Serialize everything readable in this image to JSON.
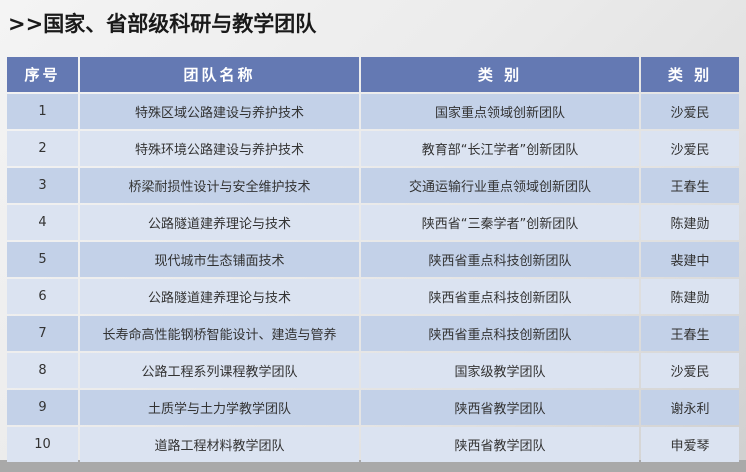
{
  "title": ">>国家、省部级科研与教学团队",
  "headers": [
    "序号",
    "团队名称",
    "类 别",
    "类 别"
  ],
  "rows": [
    [
      "1",
      "特殊区域公路建设与养护技术",
      "国家重点领域创新团队",
      "沙爱民"
    ],
    [
      "2",
      "特殊环境公路建设与养护技术",
      "教育部“长江学者”创新团队",
      "沙爱民"
    ],
    [
      "3",
      "桥梁耐损性设计与安全维护技术",
      "交通运输行业重点领域创新团队",
      "王春生"
    ],
    [
      "4",
      "公路隧道建养理论与技术",
      "陕西省“三秦学者”创新团队",
      "陈建勋"
    ],
    [
      "5",
      "现代城市生态铺面技术",
      "陕西省重点科技创新团队",
      "裴建中"
    ],
    [
      "6",
      "公路隧道建养理论与技术",
      "陕西省重点科技创新团队",
      "陈建勋"
    ],
    [
      "7",
      "长寿命高性能钢桥智能设计、建造与管养",
      "陕西省重点科技创新团队",
      "王春生"
    ],
    [
      "8",
      "公路工程系列课程教学团队",
      "国家级教学团队",
      "沙爱民"
    ],
    [
      "9",
      "土质学与土力学教学团队",
      "陕西省教学团队",
      "谢永利"
    ],
    [
      "10",
      "道路工程材料教学团队",
      "陕西省教学团队",
      "申爱琴"
    ]
  ]
}
